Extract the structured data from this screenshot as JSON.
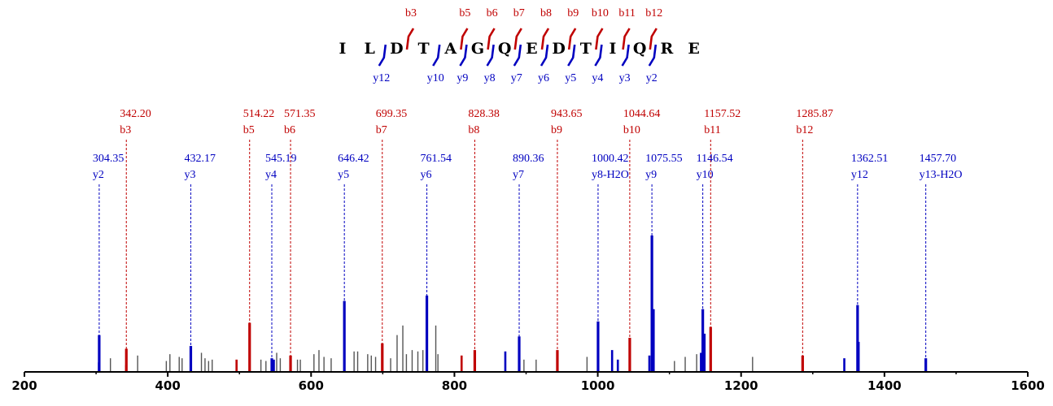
{
  "colors": {
    "b_ion": "#c00000",
    "y_ion": "#0000c0",
    "unassigned": "#555555",
    "axis": "#000000"
  },
  "peptide": {
    "sequence": [
      "I",
      "L",
      "D",
      "T",
      "A",
      "G",
      "Q",
      "E",
      "D",
      "T",
      "I",
      "Q",
      "R",
      "E"
    ],
    "b_fragments": [
      {
        "label": "b3",
        "after": 3
      },
      {
        "label": "b5",
        "after": 5
      },
      {
        "label": "b6",
        "after": 6
      },
      {
        "label": "b7",
        "after": 7
      },
      {
        "label": "b8",
        "after": 8
      },
      {
        "label": "b9",
        "after": 9
      },
      {
        "label": "b10",
        "after": 10
      },
      {
        "label": "b11",
        "after": 11
      },
      {
        "label": "b12",
        "after": 12
      }
    ],
    "y_fragments": [
      {
        "label": "y12",
        "after": 2
      },
      {
        "label": "y10",
        "after": 4
      },
      {
        "label": "y9",
        "after": 5
      },
      {
        "label": "y8",
        "after": 6
      },
      {
        "label": "y7",
        "after": 7
      },
      {
        "label": "y6",
        "after": 8
      },
      {
        "label": "y5",
        "after": 9
      },
      {
        "label": "y4",
        "after": 10
      },
      {
        "label": "y3",
        "after": 11
      },
      {
        "label": "y2",
        "after": 12
      }
    ]
  },
  "chart_data": {
    "type": "bar",
    "xlim": [
      200,
      1600
    ],
    "xticks": [
      200,
      400,
      600,
      800,
      1000,
      1200,
      1400,
      1600
    ],
    "ylim": [
      0,
      100
    ],
    "grid": false,
    "annotated_peaks": [
      {
        "mz": 304.35,
        "mz_label": "304.35",
        "ion": "y2",
        "type": "y",
        "intensity": 27
      },
      {
        "mz": 342.2,
        "mz_label": "342.20",
        "ion": "b3",
        "type": "b",
        "intensity": 17
      },
      {
        "mz": 432.17,
        "mz_label": "432.17",
        "ion": "y3",
        "type": "y",
        "intensity": 19
      },
      {
        "mz": 514.22,
        "mz_label": "514.22",
        "ion": "b5",
        "type": "b",
        "intensity": 36
      },
      {
        "mz": 545.19,
        "mz_label": "545.19",
        "ion": "y4",
        "type": "y",
        "intensity": 10
      },
      {
        "mz": 571.35,
        "mz_label": "571.35",
        "ion": "b6",
        "type": "b",
        "intensity": 12
      },
      {
        "mz": 646.42,
        "mz_label": "646.42",
        "ion": "y5",
        "type": "y",
        "intensity": 52
      },
      {
        "mz": 699.35,
        "mz_label": "699.35",
        "ion": "b7",
        "type": "b",
        "intensity": 21
      },
      {
        "mz": 761.54,
        "mz_label": "761.54",
        "ion": "y6",
        "type": "y",
        "intensity": 56
      },
      {
        "mz": 828.38,
        "mz_label": "828.38",
        "ion": "b8",
        "type": "b",
        "intensity": 16
      },
      {
        "mz": 890.36,
        "mz_label": "890.36",
        "ion": "y7",
        "type": "y",
        "intensity": 26
      },
      {
        "mz": 943.65,
        "mz_label": "943.65",
        "ion": "b9",
        "type": "b",
        "intensity": 16
      },
      {
        "mz": 1000.42,
        "mz_label": "1000.42",
        "ion": "y8-H2O",
        "type": "y",
        "intensity": 37
      },
      {
        "mz": 1044.64,
        "mz_label": "1044.64",
        "ion": "b10",
        "type": "b",
        "intensity": 25
      },
      {
        "mz": 1075.55,
        "mz_label": "1075.55",
        "ion": "y9",
        "type": "y",
        "intensity": 100
      },
      {
        "mz": 1146.54,
        "mz_label": "1146.54",
        "ion": "y10",
        "type": "y",
        "intensity": 46
      },
      {
        "mz": 1157.52,
        "mz_label": "1157.52",
        "ion": "b11",
        "type": "b",
        "intensity": 33
      },
      {
        "mz": 1285.87,
        "mz_label": "1285.87",
        "ion": "b12",
        "type": "b",
        "intensity": 12
      },
      {
        "mz": 1362.51,
        "mz_label": "1362.51",
        "ion": "y12",
        "type": "y",
        "intensity": 49
      },
      {
        "mz": 1457.7,
        "mz_label": "1457.70",
        "ion": "y13-H2O",
        "type": "y",
        "intensity": 10
      }
    ],
    "other_peaks": [
      {
        "mz": 304,
        "intensity": 7,
        "type": "y"
      },
      {
        "mz": 342,
        "intensity": 5,
        "type": "b"
      },
      {
        "mz": 432,
        "intensity": 5,
        "type": "y"
      },
      {
        "mz": 496,
        "intensity": 9,
        "type": "b"
      },
      {
        "mz": 548,
        "intensity": 9,
        "type": "y"
      },
      {
        "mz": 810,
        "intensity": 12,
        "type": "b"
      },
      {
        "mz": 871,
        "intensity": 15,
        "type": "y"
      },
      {
        "mz": 1020,
        "intensity": 16,
        "type": "y"
      },
      {
        "mz": 1028,
        "intensity": 9,
        "type": "y"
      },
      {
        "mz": 1072,
        "intensity": 12,
        "type": "y"
      },
      {
        "mz": 1078,
        "intensity": 46,
        "type": "y"
      },
      {
        "mz": 1144,
        "intensity": 14,
        "type": "y"
      },
      {
        "mz": 1149,
        "intensity": 28,
        "type": "y"
      },
      {
        "mz": 1344,
        "intensity": 10,
        "type": "y"
      },
      {
        "mz": 1364,
        "intensity": 22,
        "type": "y"
      },
      {
        "mz": 320,
        "intensity": 10,
        "type": "u"
      },
      {
        "mz": 358,
        "intensity": 12,
        "type": "u"
      },
      {
        "mz": 398,
        "intensity": 8,
        "type": "u"
      },
      {
        "mz": 403,
        "intensity": 13,
        "type": "u"
      },
      {
        "mz": 416,
        "intensity": 11,
        "type": "u"
      },
      {
        "mz": 420,
        "intensity": 10,
        "type": "u"
      },
      {
        "mz": 447,
        "intensity": 14,
        "type": "u"
      },
      {
        "mz": 452,
        "intensity": 10,
        "type": "u"
      },
      {
        "mz": 457,
        "intensity": 8,
        "type": "u"
      },
      {
        "mz": 462,
        "intensity": 9,
        "type": "u"
      },
      {
        "mz": 530,
        "intensity": 9,
        "type": "u"
      },
      {
        "mz": 537,
        "intensity": 8,
        "type": "u"
      },
      {
        "mz": 552,
        "intensity": 14,
        "type": "u"
      },
      {
        "mz": 557,
        "intensity": 10,
        "type": "u"
      },
      {
        "mz": 581,
        "intensity": 9,
        "type": "u"
      },
      {
        "mz": 585,
        "intensity": 9,
        "type": "u"
      },
      {
        "mz": 604,
        "intensity": 13,
        "type": "u"
      },
      {
        "mz": 611,
        "intensity": 16,
        "type": "u"
      },
      {
        "mz": 618,
        "intensity": 11,
        "type": "u"
      },
      {
        "mz": 628,
        "intensity": 10,
        "type": "u"
      },
      {
        "mz": 660,
        "intensity": 15,
        "type": "u"
      },
      {
        "mz": 665,
        "intensity": 15,
        "type": "u"
      },
      {
        "mz": 679,
        "intensity": 13,
        "type": "u"
      },
      {
        "mz": 684,
        "intensity": 12,
        "type": "u"
      },
      {
        "mz": 690,
        "intensity": 11,
        "type": "u"
      },
      {
        "mz": 711,
        "intensity": 10,
        "type": "u"
      },
      {
        "mz": 720,
        "intensity": 27,
        "type": "u"
      },
      {
        "mz": 728,
        "intensity": 34,
        "type": "u"
      },
      {
        "mz": 733,
        "intensity": 13,
        "type": "u"
      },
      {
        "mz": 741,
        "intensity": 16,
        "type": "u"
      },
      {
        "mz": 749,
        "intensity": 15,
        "type": "u"
      },
      {
        "mz": 756,
        "intensity": 16,
        "type": "u"
      },
      {
        "mz": 774,
        "intensity": 34,
        "type": "u"
      },
      {
        "mz": 777,
        "intensity": 13,
        "type": "u"
      },
      {
        "mz": 897,
        "intensity": 9,
        "type": "u"
      },
      {
        "mz": 914,
        "intensity": 9,
        "type": "u"
      },
      {
        "mz": 985,
        "intensity": 11,
        "type": "u"
      },
      {
        "mz": 1107,
        "intensity": 8,
        "type": "u"
      },
      {
        "mz": 1122,
        "intensity": 11,
        "type": "u"
      },
      {
        "mz": 1138,
        "intensity": 13,
        "type": "u"
      },
      {
        "mz": 1216,
        "intensity": 11,
        "type": "u"
      }
    ]
  }
}
